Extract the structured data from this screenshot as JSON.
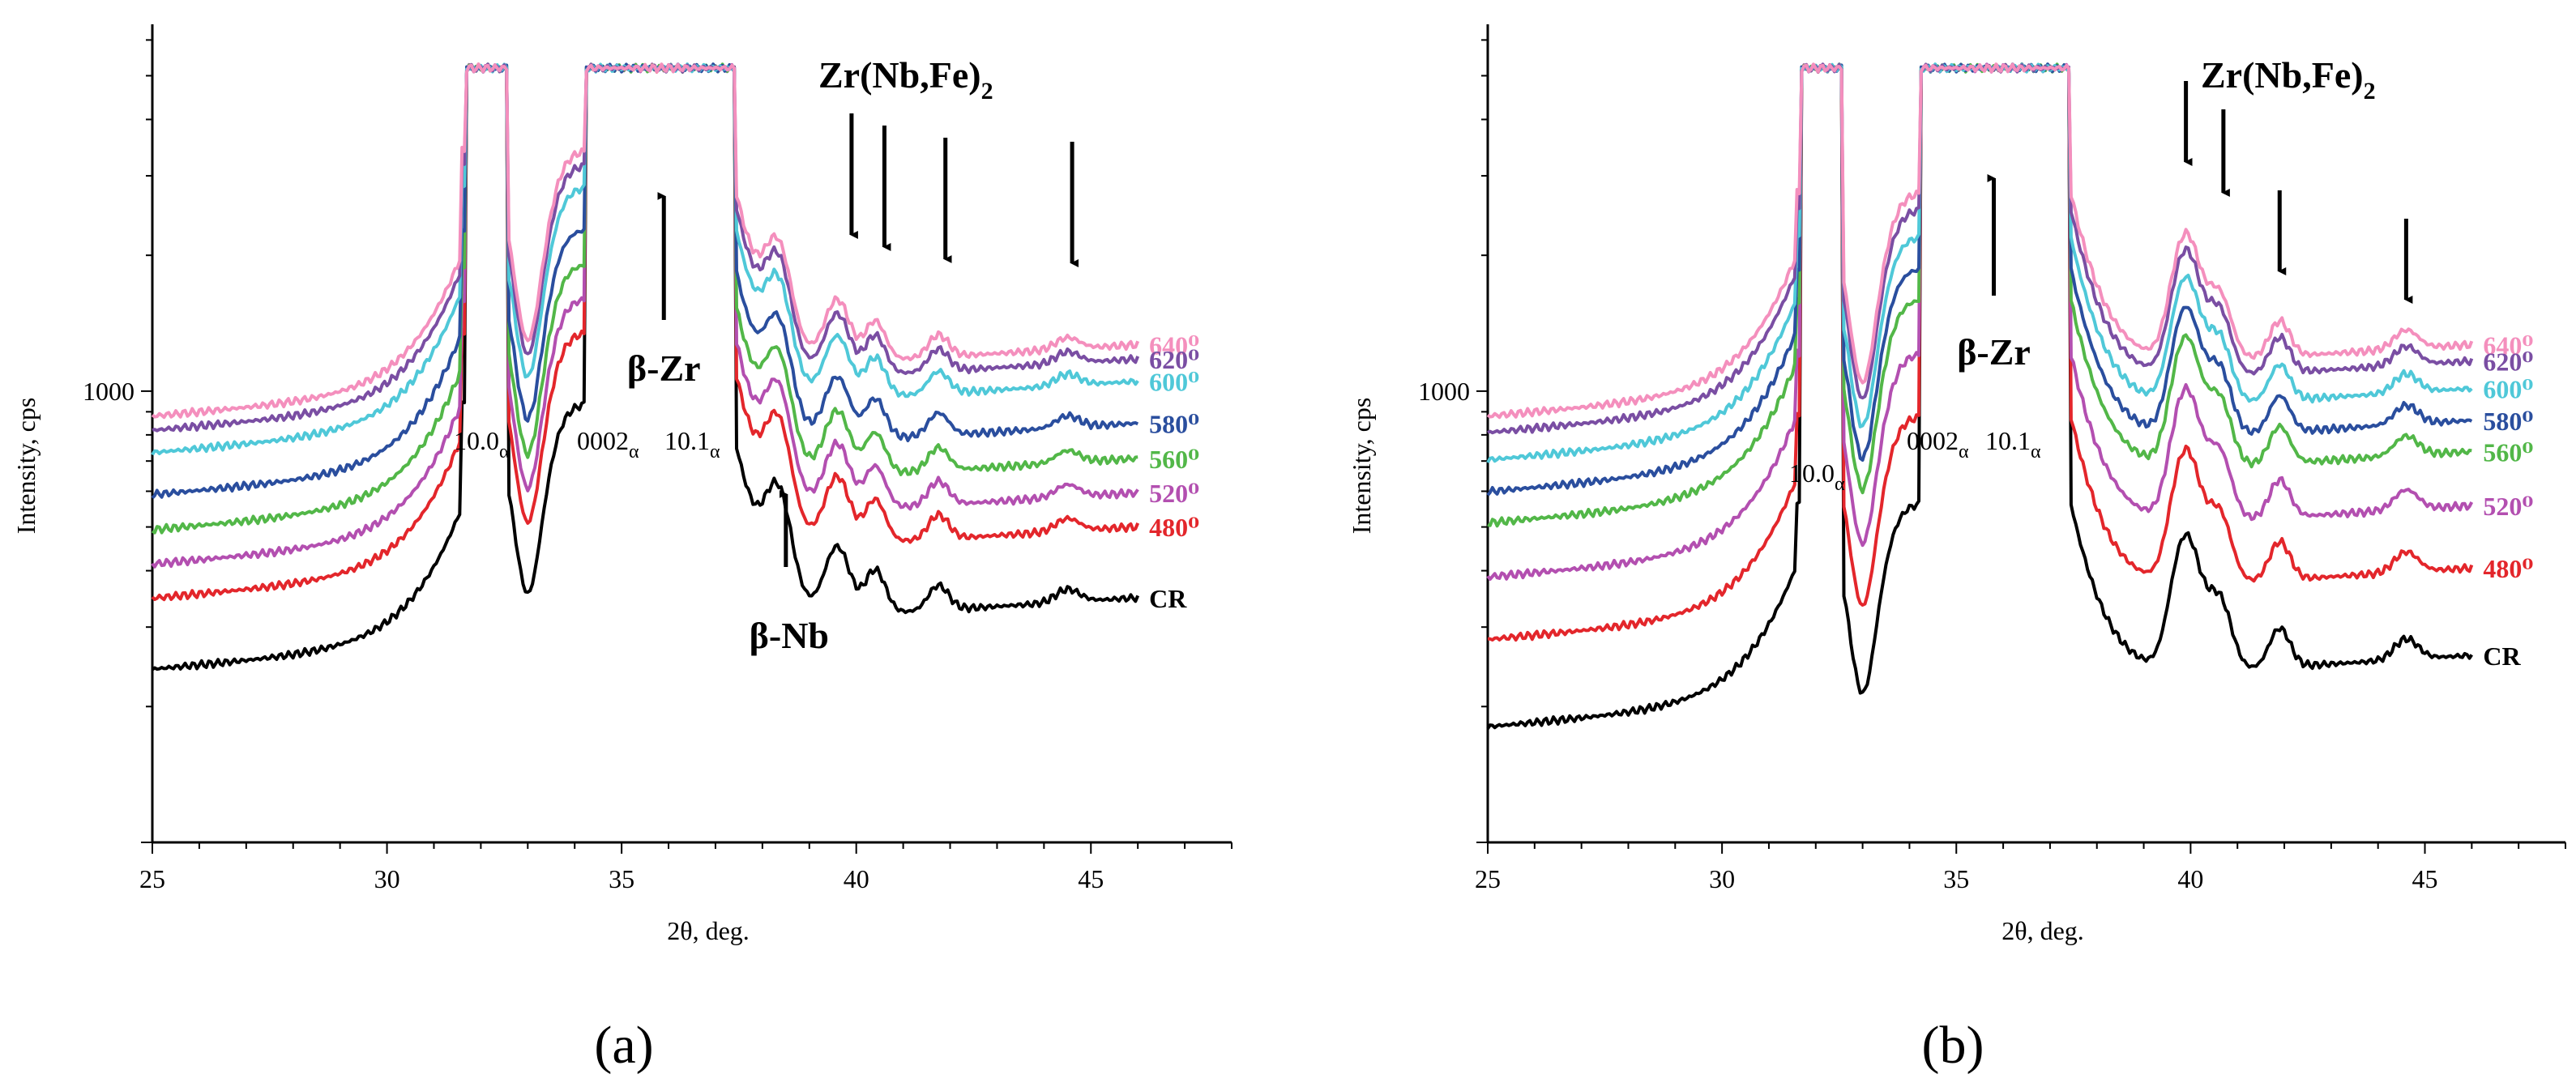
{
  "figure": {
    "panel_labels": [
      "(a)",
      "(b)"
    ]
  },
  "chart_data": [
    {
      "type": "line",
      "panel": "(a)",
      "xlabel": "2θ, deg.",
      "ylabel": "Intensity, cps",
      "xlim": [
        25,
        48
      ],
      "x_ticks": [
        25,
        30,
        35,
        40,
        45
      ],
      "ylim_log": [
        100,
        6500
      ],
      "y_tick_labels": [
        {
          "value": 1000,
          "label": "1000"
        }
      ],
      "y_scale": "log",
      "annotations": {
        "zr_nbfe": {
          "main": "Zr(Nb,Fe)",
          "sub": "2",
          "arrow_x": [
            39.9,
            40.6,
            41.9,
            44.6
          ]
        },
        "beta_zr": {
          "text": "β-Zr",
          "arrow_x": 35.9
        },
        "beta_nb": {
          "text": "β-Nb",
          "arrow_x": 38.5
        },
        "alpha_peaks": [
          {
            "main": "10.0",
            "sub": "α"
          },
          {
            "main": "0002",
            "sub": "α"
          },
          {
            "main": "10.1",
            "sub": "α"
          }
        ]
      },
      "series": [
        {
          "name": "640⁰",
          "color": "#f48fbd",
          "base": 1000,
          "peakscale": 1.0
        },
        {
          "name": "620⁰",
          "color": "#7a4ea3",
          "base": 930,
          "peakscale": 1.0
        },
        {
          "name": "600⁰",
          "color": "#4fc8d8",
          "base": 830,
          "peakscale": 1.0
        },
        {
          "name": "580⁰",
          "color": "#2a4e9e",
          "base": 670,
          "peakscale": 1.02
        },
        {
          "name": "560⁰",
          "color": "#52b748",
          "base": 560,
          "peakscale": 1.05
        },
        {
          "name": "520⁰",
          "color": "#b34fb0",
          "base": 470,
          "peakscale": 1.08
        },
        {
          "name": "480⁰",
          "color": "#e3262b",
          "base": 395,
          "peakscale": 1.1
        },
        {
          "name": "CR",
          "color": "#000000",
          "base": 275,
          "peakscale": 1.12
        }
      ]
    },
    {
      "type": "line",
      "panel": "(b)",
      "xlabel": "2θ, deg.",
      "ylabel": "Intensity, cps",
      "xlim": [
        25,
        48
      ],
      "x_ticks": [
        25,
        30,
        35,
        40,
        45
      ],
      "ylim_log": [
        100,
        6500
      ],
      "y_tick_labels": [
        {
          "value": 1000,
          "label": "1000"
        }
      ],
      "y_scale": "log",
      "annotations": {
        "zr_nbfe": {
          "main": "Zr(Nb,Fe)",
          "sub": "2",
          "arrow_x": [
            39.9,
            40.7,
            41.9,
            44.6
          ]
        },
        "beta_zr": {
          "text": "β-Zr",
          "arrow_x": 35.8
        },
        "alpha_peaks": [
          {
            "main": "10.0",
            "sub": "α"
          },
          {
            "main": "0002",
            "sub": "α"
          },
          {
            "main": "10.1",
            "sub": "α"
          }
        ]
      },
      "series": [
        {
          "name": "640⁰",
          "color": "#f48fbd",
          "base": 1000,
          "peakscale": 1.0
        },
        {
          "name": "620⁰",
          "color": "#7a4ea3",
          "base": 920,
          "peakscale": 1.0
        },
        {
          "name": "600⁰",
          "color": "#4fc8d8",
          "base": 800,
          "peakscale": 1.0
        },
        {
          "name": "580⁰",
          "color": "#2a4e9e",
          "base": 680,
          "peakscale": 1.02
        },
        {
          "name": "560⁰",
          "color": "#52b748",
          "base": 580,
          "peakscale": 1.04
        },
        {
          "name": "520⁰",
          "color": "#b34fb0",
          "base": 440,
          "peakscale": 1.06
        },
        {
          "name": "480⁰",
          "color": "#e3262b",
          "base": 320,
          "peakscale": 1.08
        },
        {
          "name": "CR",
          "color": "#000000",
          "base": 205,
          "peakscale": 1.1
        }
      ]
    }
  ]
}
